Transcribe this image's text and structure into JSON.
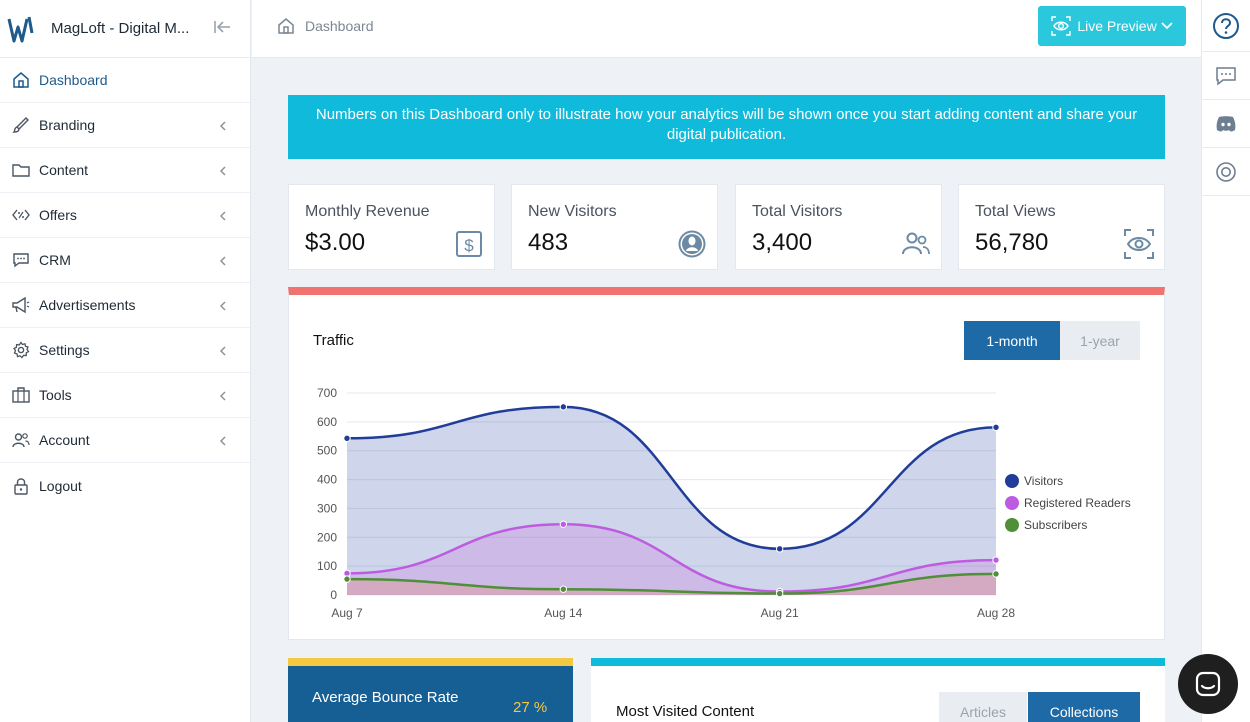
{
  "app": {
    "title": "MagLoft - Digital M...",
    "brand_color": "#1e5a8c",
    "accent_color": "#0fbadb"
  },
  "sidebar": {
    "items": [
      {
        "label": "Dashboard",
        "icon": "home-icon",
        "active": true
      },
      {
        "label": "Branding",
        "icon": "brush-icon"
      },
      {
        "label": "Content",
        "icon": "folder-icon"
      },
      {
        "label": "Offers",
        "icon": "offers-icon"
      },
      {
        "label": "CRM",
        "icon": "chat-icon"
      },
      {
        "label": "Advertisements",
        "icon": "megaphone-icon"
      },
      {
        "label": "Settings",
        "icon": "gear-icon"
      },
      {
        "label": "Tools",
        "icon": "toolbox-icon"
      },
      {
        "label": "Account",
        "icon": "users-icon"
      },
      {
        "label": "Logout",
        "icon": "lock-icon"
      }
    ]
  },
  "header": {
    "breadcrumb": "Dashboard",
    "live_preview": "Live Preview"
  },
  "banner": {
    "text": "Numbers on this Dashboard only to illustrate how your analytics will be shown once you start adding content and share your digital publication."
  },
  "stats": [
    {
      "title": "Monthly Revenue",
      "value": "$3.00",
      "icon": "dollar-icon"
    },
    {
      "title": "New Visitors",
      "value": "483",
      "icon": "user-circle-icon"
    },
    {
      "title": "Total Visitors",
      "value": "3,400",
      "icon": "users-icon"
    },
    {
      "title": "Total Views",
      "value": "56,780",
      "icon": "eye-icon"
    }
  ],
  "traffic": {
    "title": "Traffic",
    "range_options": [
      "1-month",
      "1-year"
    ],
    "selected_range": "1-month"
  },
  "chart_data": {
    "type": "area",
    "title": "Traffic",
    "categories": [
      "Aug 7",
      "Aug 14",
      "Aug 21",
      "Aug 28"
    ],
    "ylim": [
      0,
      700
    ],
    "yticks": [
      0,
      100,
      200,
      300,
      400,
      500,
      600,
      700
    ],
    "legend_position": "right",
    "series": [
      {
        "name": "Visitors",
        "values": [
          543,
          652,
          160,
          581
        ],
        "color": "#1f3d99",
        "fill": "rgba(62,88,170,0.25)"
      },
      {
        "name": "Registered Readers",
        "values": [
          75,
          245,
          12,
          121
        ],
        "color": "#bd5ce0",
        "fill": "rgba(200,120,220,0.28)"
      },
      {
        "name": "Subscribers",
        "values": [
          55,
          20,
          5,
          73
        ],
        "color": "#4e8f38",
        "fill": "rgba(220,150,150,0.45)"
      }
    ]
  },
  "bounce": {
    "title": "Average Bounce Rate",
    "value": "27 %"
  },
  "most_visited": {
    "title": "Most Visited Content",
    "tabs": [
      "Articles",
      "Collections"
    ],
    "selected": "Collections"
  }
}
